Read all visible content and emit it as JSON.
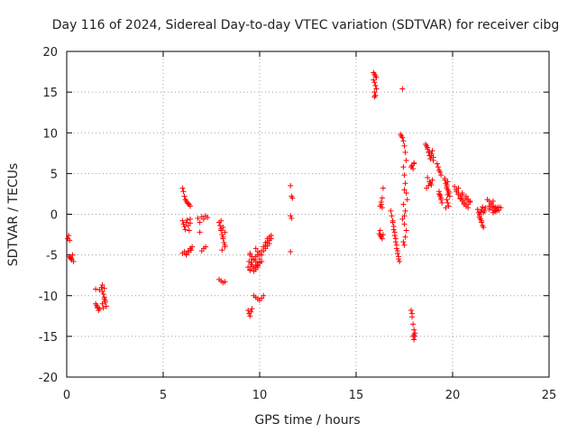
{
  "chart_data": {
    "type": "scatter",
    "title": "Day 116 of 2024, Sidereal Day-to-day VTEC variation (SDTVAR) for receiver cibg",
    "xlabel": "GPS time / hours",
    "ylabel": "SDTVAR / TECUs",
    "xlim": [
      0,
      25
    ],
    "ylim": [
      -20,
      20
    ],
    "xticks": [
      0,
      5,
      10,
      15,
      20,
      25
    ],
    "xtick_labels": [
      "0",
      "5",
      "10",
      "15",
      "20",
      "25"
    ],
    "yticks": [
      -20,
      -15,
      -10,
      -5,
      0,
      5,
      10,
      15,
      20
    ],
    "ytick_labels": [
      "-20",
      "-15",
      "-10",
      "-5",
      "0",
      "5",
      "10",
      "15",
      "20"
    ],
    "grid": true,
    "marker": "+",
    "color": "#ff0000",
    "series": [
      {
        "name": "SDTVAR",
        "x": [
          0.05,
          0.1,
          0.15,
          0.2,
          0.25,
          0.3,
          0.35,
          0.15,
          0.2,
          0.25,
          1.5,
          1.55,
          1.6,
          1.65,
          1.7,
          1.5,
          1.6,
          1.7,
          1.8,
          1.85,
          1.9,
          1.95,
          2.0,
          2.05,
          1.85,
          1.95,
          1.85,
          1.95,
          2.0,
          1.9,
          6.0,
          6.05,
          6.1,
          6.15,
          6.2,
          6.25,
          6.3,
          6.35,
          6.4,
          6.0,
          6.05,
          6.1,
          6.15,
          6.2,
          6.25,
          6.3,
          6.35,
          6.4,
          6.0,
          6.1,
          6.2,
          6.3,
          6.4,
          6.45,
          6.5,
          6.2,
          6.3,
          6.4,
          6.8,
          6.9,
          7.0,
          7.1,
          7.2,
          7.3,
          7.0,
          7.1,
          7.2,
          6.9,
          7.9,
          7.95,
          8.0,
          8.05,
          8.1,
          8.15,
          8.2,
          7.9,
          8.0,
          8.1,
          8.2,
          8.0,
          8.1,
          8.2,
          8.05,
          8.0,
          8.1,
          8.2,
          9.4,
          9.45,
          9.5,
          9.55,
          9.6,
          9.4,
          9.5,
          9.6,
          9.45,
          9.55,
          9.5,
          9.6,
          9.7,
          9.8,
          9.9,
          10.0,
          9.7,
          9.8,
          9.9,
          10.0,
          10.1,
          10.2,
          9.7,
          9.8,
          9.9,
          10.0,
          10.1,
          10.2,
          10.3,
          10.4,
          10.5,
          10.6,
          10.3,
          10.4,
          10.5,
          10.6,
          10.2,
          10.3,
          10.4,
          10.5,
          9.5,
          9.6,
          9.7,
          9.8,
          9.9,
          10.0,
          10.1,
          9.6,
          9.7,
          9.8,
          9.9,
          10.0,
          9.5,
          9.7,
          9.9,
          10.1,
          9.8,
          9.9,
          10.0,
          11.6,
          11.65,
          11.7,
          11.6,
          11.65,
          11.6,
          15.9,
          15.95,
          16.0,
          16.05,
          15.9,
          15.95,
          16.0,
          16.05,
          15.95,
          16.0,
          15.95,
          16.0,
          16.2,
          16.25,
          16.3,
          16.35,
          16.4,
          16.25,
          16.3,
          16.35,
          16.4,
          16.3,
          16.25,
          16.35,
          16.8,
          16.85,
          16.9,
          16.95,
          17.0,
          17.05,
          17.1,
          17.15,
          17.2,
          17.25,
          16.9,
          17.0,
          17.1,
          17.2,
          16.95,
          17.05,
          17.15,
          17.3,
          17.35,
          17.4,
          17.45,
          17.5,
          17.55,
          17.6,
          17.45,
          17.5,
          17.55,
          17.6,
          17.65,
          17.4,
          17.5,
          17.6,
          17.55,
          17.45,
          17.5,
          17.4,
          17.5,
          17.45,
          17.55,
          17.5,
          17.85,
          17.9,
          17.95,
          18.0,
          18.05,
          17.95,
          18.0,
          18.05,
          17.9,
          18.0,
          17.85,
          17.95,
          18.0,
          17.9,
          18.0,
          18.6,
          18.65,
          18.7,
          18.75,
          18.8,
          18.85,
          18.9,
          18.95,
          19.0,
          18.7,
          18.8,
          18.9,
          18.65,
          18.75,
          18.85,
          18.95,
          18.7,
          18.8,
          18.9,
          19.0,
          19.2,
          19.25,
          19.3,
          19.35,
          19.4,
          19.3,
          19.35,
          19.4,
          19.45,
          19.3,
          19.35,
          19.4,
          19.6,
          19.65,
          19.7,
          19.75,
          19.8,
          19.85,
          19.7,
          19.75,
          19.8,
          19.65,
          19.75,
          19.7,
          19.8,
          19.6,
          19.7,
          19.75,
          20.1,
          20.2,
          20.3,
          20.4,
          20.5,
          20.6,
          20.7,
          20.8,
          20.2,
          20.3,
          20.4,
          20.5,
          20.6,
          20.7,
          20.8,
          20.9,
          20.3,
          20.5,
          20.7,
          20.4,
          20.6,
          20.8,
          20.5,
          20.7,
          20.9,
          21.3,
          21.35,
          21.4,
          21.45,
          21.5,
          21.55,
          21.6,
          21.65,
          21.7,
          21.4,
          21.5,
          21.6,
          21.4,
          21.45,
          21.5,
          21.55,
          21.8,
          21.9,
          22.0,
          22.1,
          22.2,
          22.3,
          22.4,
          22.5,
          21.9,
          22.0,
          22.1,
          22.2,
          22.3,
          22.4,
          22.0,
          22.1,
          22.2,
          22.3,
          21.9,
          22.1,
          22.2
        ],
        "y": [
          -3.0,
          -2.6,
          -5.2,
          -5.4,
          -5.6,
          -5.0,
          -5.8,
          -3.2,
          -5.3,
          -5.5,
          -9.2,
          -11.2,
          -11.5,
          -11.8,
          -9.3,
          -11.0,
          -11.4,
          -11.6,
          -9.0,
          -8.7,
          -9.8,
          -10.4,
          -10.8,
          -11.3,
          -9.5,
          -10.2,
          -11.0,
          -9.1,
          -10.6,
          -11.5,
          3.2,
          2.8,
          2.2,
          1.8,
          1.6,
          1.4,
          1.3,
          1.2,
          1.0,
          -0.8,
          -1.2,
          -1.5,
          -1.9,
          -1.0,
          -0.7,
          -1.4,
          -2.0,
          -1.1,
          -4.8,
          -4.6,
          -4.9,
          -4.5,
          -4.2,
          -4.4,
          -4.0,
          -5.0,
          -4.7,
          -0.6,
          -0.5,
          -1.0,
          -0.3,
          -0.6,
          -0.2,
          -0.4,
          -4.5,
          -4.2,
          -4.0,
          -2.2,
          -1.0,
          -1.4,
          -2.0,
          -2.5,
          -3.0,
          -3.5,
          -4.0,
          -8.0,
          -8.2,
          -8.4,
          -8.3,
          -1.8,
          -2.8,
          -3.8,
          -4.4,
          -0.8,
          -1.6,
          -2.2,
          -11.8,
          -12.2,
          -12.5,
          -12.0,
          -11.6,
          -6.5,
          -6.8,
          -6.2,
          -5.8,
          -6.0,
          -5.0,
          -5.5,
          -6.6,
          -6.4,
          -6.2,
          -6.0,
          -10.0,
          -10.2,
          -10.4,
          -10.6,
          -10.3,
          -10.0,
          -5.5,
          -5.2,
          -5.0,
          -4.8,
          -4.5,
          -4.0,
          -3.5,
          -3.0,
          -2.8,
          -2.6,
          -3.8,
          -3.4,
          -3.2,
          -3.0,
          -4.5,
          -4.2,
          -3.9,
          -3.6,
          -4.8,
          -5.2,
          -5.6,
          -5.8,
          -6.0,
          -5.5,
          -5.0,
          -6.4,
          -6.6,
          -6.8,
          -6.3,
          -5.9,
          -6.9,
          -7.0,
          -6.5,
          -5.8,
          -4.2,
          -4.6,
          -5.0,
          3.5,
          2.2,
          2.0,
          -0.2,
          -0.5,
          -4.6,
          17.4,
          17.2,
          17.0,
          16.8,
          16.5,
          16.2,
          15.8,
          15.4,
          15.0,
          14.6,
          14.4,
          14.6,
          -2.4,
          -2.6,
          -2.8,
          -3.0,
          -2.5,
          1.0,
          1.5,
          2.0,
          3.2,
          1.2,
          -2.0,
          0.8,
          0.4,
          -0.2,
          -0.8,
          -1.5,
          -2.2,
          -3.0,
          -3.8,
          -4.5,
          -5.2,
          -5.8,
          -1.0,
          -2.6,
          -4.2,
          -5.5,
          -1.9,
          -3.4,
          -4.8,
          9.8,
          9.6,
          9.4,
          9.0,
          8.4,
          7.6,
          6.6,
          5.8,
          4.8,
          3.8,
          2.6,
          1.8,
          -0.6,
          -1.2,
          -2.0,
          -2.8,
          -3.4,
          -3.8,
          15.4,
          3.0,
          1.2,
          0.4,
          -0.2,
          -11.8,
          -12.6,
          -13.5,
          -14.2,
          -14.6,
          -15.0,
          -15.4,
          -15.0,
          6.0,
          6.2,
          5.8,
          5.6,
          6.3,
          -12.2,
          -14.8,
          8.6,
          8.4,
          8.0,
          7.6,
          7.2,
          6.8,
          7.4,
          7.8,
          7.0,
          4.5,
          4.0,
          3.6,
          3.2,
          3.5,
          3.8,
          4.2,
          8.2,
          7.6,
          7.2,
          6.6,
          6.2,
          5.8,
          5.4,
          5.2,
          4.8,
          2.5,
          2.2,
          1.8,
          1.4,
          2.8,
          2.4,
          2.0,
          4.2,
          3.8,
          3.4,
          3.0,
          2.6,
          2.2,
          1.8,
          1.4,
          1.0,
          0.8,
          4.0,
          3.2,
          2.8,
          4.4,
          3.6,
          2.4,
          3.4,
          3.0,
          2.6,
          2.2,
          1.8,
          1.4,
          1.0,
          0.8,
          2.8,
          2.4,
          2.0,
          1.6,
          1.2,
          2.2,
          1.8,
          1.5,
          3.2,
          2.6,
          1.8,
          1.9,
          1.4,
          1.2,
          2.4,
          2.0,
          1.6,
          0.6,
          0.2,
          -0.2,
          -0.6,
          -1.0,
          -1.4,
          -1.6,
          0.4,
          0.8,
          -0.4,
          -0.8,
          0.2,
          0.0,
          0.3,
          0.6,
          0.9,
          1.8,
          1.6,
          1.2,
          1.0,
          0.9,
          0.8,
          0.9,
          0.8,
          0.6,
          0.8,
          0.5,
          0.4,
          0.6,
          0.5,
          1.4,
          0.2,
          0.3,
          0.4,
          1.0,
          1.6,
          0.7
        ]
      }
    ]
  }
}
